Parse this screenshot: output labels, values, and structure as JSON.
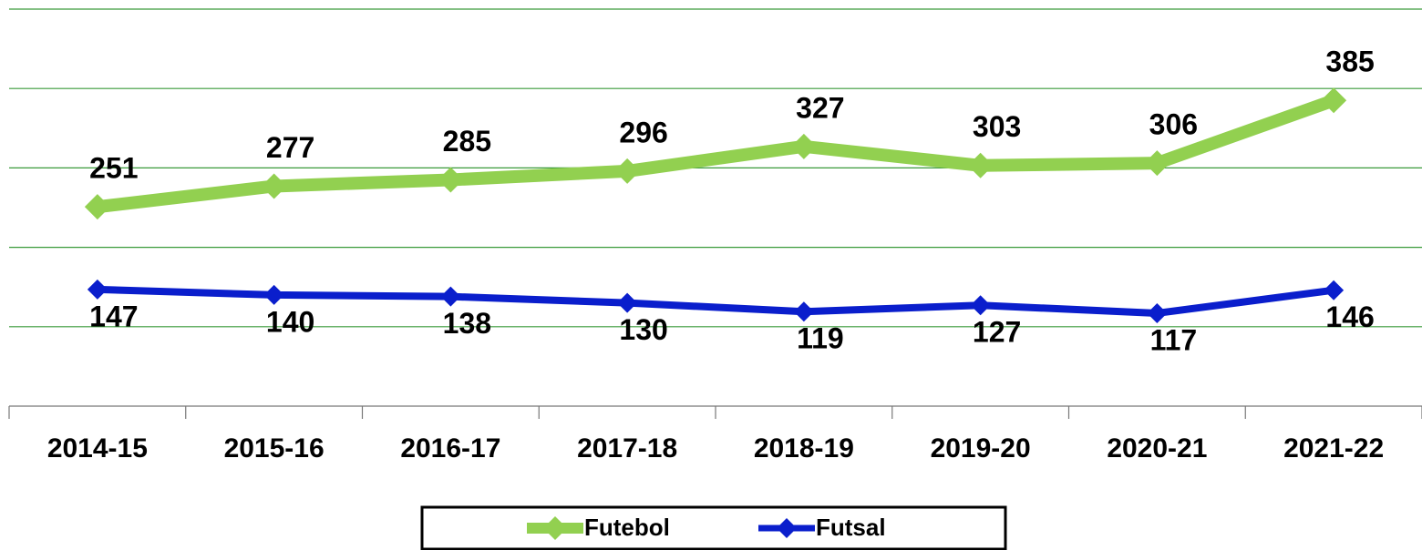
{
  "chart_data": {
    "type": "line",
    "categories": [
      "2014-15",
      "2015-16",
      "2016-17",
      "2017-18",
      "2018-19",
      "2019-20",
      "2020-21",
      "2021-22"
    ],
    "series": [
      {
        "name": "Futebol",
        "color": "#92d050",
        "values": [
          251,
          277,
          285,
          296,
          327,
          303,
          306,
          385
        ]
      },
      {
        "name": "Futsal",
        "color": "#0a1ecc",
        "values": [
          147,
          140,
          138,
          130,
          119,
          127,
          117,
          146
        ]
      }
    ],
    "ylim": [
      0,
      500
    ],
    "yticks": [
      0,
      100,
      200,
      300,
      400,
      500
    ],
    "grid": true,
    "legend": "bottom"
  }
}
